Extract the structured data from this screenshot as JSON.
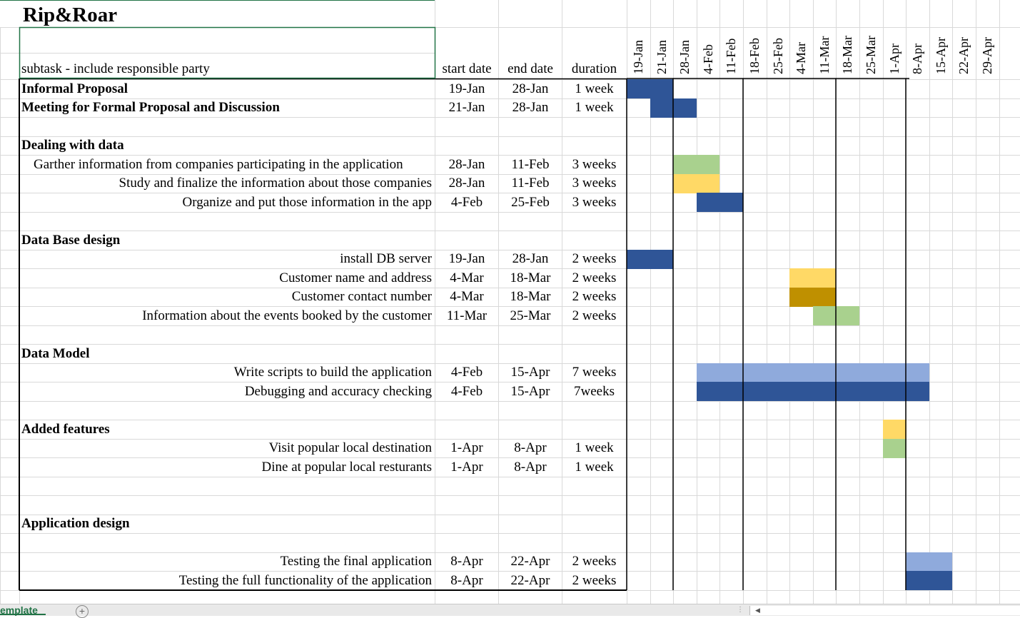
{
  "title": "Rip&Roar",
  "headers": {
    "task": "subtask - include responsible party",
    "start": "start date",
    "end": "end date",
    "duration": "duration"
  },
  "weeks": [
    "19-Jan",
    "21-Jan",
    "28-Jan",
    "4-Feb",
    "11-Feb",
    "18-Feb",
    "25-Feb",
    "4-Mar",
    "11-Mar",
    "18-Mar",
    "25-Mar",
    "1-Apr",
    "8-Apr",
    "15-Apr",
    "22-Apr",
    "29-Apr"
  ],
  "rows": [
    {
      "task": "Informal Proposal",
      "style": "bold",
      "start": "19-Jan",
      "end": "28-Jan",
      "duration": "1 week"
    },
    {
      "task": "Meeting for Formal Proposal and Discussion",
      "style": "bold",
      "start": "21-Jan",
      "end": "28-Jan",
      "duration": "1 week"
    },
    {
      "task": "",
      "style": "blank",
      "start": "",
      "end": "",
      "duration": ""
    },
    {
      "task": "Dealing with data",
      "style": "bold",
      "start": "",
      "end": "",
      "duration": ""
    },
    {
      "task": "Garther information from companies participating in the application",
      "style": "indent",
      "start": "28-Jan",
      "end": "11-Feb",
      "duration": "3 weeks"
    },
    {
      "task": "Study and finalize  the information about those companies",
      "style": "right",
      "start": "28-Jan",
      "end": "11-Feb",
      "duration": "3 weeks"
    },
    {
      "task": "Organize and put those information in the app",
      "style": "right",
      "start": "4-Feb",
      "end": "25-Feb",
      "duration": "3 weeks"
    },
    {
      "task": "",
      "style": "blank",
      "start": "",
      "end": "",
      "duration": ""
    },
    {
      "task": "Data Base design",
      "style": "bold",
      "start": "",
      "end": "",
      "duration": ""
    },
    {
      "task": "install DB server",
      "style": "right",
      "start": "19-Jan",
      "end": "28-Jan",
      "duration": "2 weeks"
    },
    {
      "task": "Customer name and address",
      "style": "right",
      "start": "4-Mar",
      "end": "18-Mar",
      "duration": "2 weeks"
    },
    {
      "task": "Customer contact number",
      "style": "right",
      "start": "4-Mar",
      "end": "18-Mar",
      "duration": "2 weeks"
    },
    {
      "task": "Information about the events booked by the customer",
      "style": "right",
      "start": "11-Mar",
      "end": "25-Mar",
      "duration": "2 weeks"
    },
    {
      "task": "",
      "style": "blank",
      "start": "",
      "end": "",
      "duration": ""
    },
    {
      "task": "Data Model",
      "style": "bold",
      "start": "",
      "end": "",
      "duration": ""
    },
    {
      "task": "Write scripts to build the application",
      "style": "right",
      "start": "4-Feb",
      "end": "15-Apr",
      "duration": "7 weeks"
    },
    {
      "task": "Debugging and accuracy checking",
      "style": "right",
      "start": "4-Feb",
      "end": "15-Apr",
      "duration": "7weeks"
    },
    {
      "task": "",
      "style": "blank",
      "start": "",
      "end": "",
      "duration": ""
    },
    {
      "task": "Added features",
      "style": "bold",
      "start": "",
      "end": "",
      "duration": ""
    },
    {
      "task": "Visit popular local destination",
      "style": "right",
      "start": "1-Apr",
      "end": "8-Apr",
      "duration": "1 week"
    },
    {
      "task": "Dine at popular local resturants",
      "style": "right",
      "start": "1-Apr",
      "end": "8-Apr",
      "duration": "1 week"
    },
    {
      "task": "",
      "style": "blank",
      "start": "",
      "end": "",
      "duration": ""
    },
    {
      "task": "",
      "style": "blank",
      "start": "",
      "end": "",
      "duration": ""
    },
    {
      "task": "Application design",
      "style": "bold",
      "start": "",
      "end": "",
      "duration": ""
    },
    {
      "task": "",
      "style": "blank",
      "start": "",
      "end": "",
      "duration": ""
    },
    {
      "task": "Testing the final application",
      "style": "right",
      "start": "8-Apr",
      "end": "22-Apr",
      "duration": "2 weeks"
    },
    {
      "task": "Testing the full functionality of the application",
      "style": "right",
      "start": "8-Apr",
      "end": "22-Apr",
      "duration": "2 weeks"
    }
  ],
  "gantt_bars": [
    {
      "row": 0,
      "start_week": "19-Jan",
      "end_week": "21-Jan",
      "color": "#2f5597"
    },
    {
      "row": 1,
      "start_week": "21-Jan",
      "end_week": "28-Jan",
      "color": "#2f5597"
    },
    {
      "row": 4,
      "start_week": "28-Jan",
      "end_week": "4-Feb",
      "color": "#a9d18e"
    },
    {
      "row": 5,
      "start_week": "28-Jan",
      "end_week": "4-Feb",
      "color": "#ffd966"
    },
    {
      "row": 6,
      "start_week": "4-Feb",
      "end_week": "11-Feb",
      "color": "#2f5597"
    },
    {
      "row": 9,
      "start_week": "19-Jan",
      "end_week": "21-Jan",
      "color": "#2f5597"
    },
    {
      "row": 10,
      "start_week": "4-Mar",
      "end_week": "11-Mar",
      "color": "#ffd966"
    },
    {
      "row": 11,
      "start_week": "4-Mar",
      "end_week": "11-Mar",
      "color": "#bf9000"
    },
    {
      "row": 12,
      "start_week": "11-Mar",
      "end_week": "18-Mar",
      "color": "#a9d18e"
    },
    {
      "row": 15,
      "start_week": "4-Feb",
      "end_week": "8-Apr",
      "color": "#8faadc"
    },
    {
      "row": 16,
      "start_week": "4-Feb",
      "end_week": "8-Apr",
      "color": "#2f5597"
    },
    {
      "row": 18,
      "start_week": "1-Apr",
      "end_week": "1-Apr",
      "color": "#ffd966"
    },
    {
      "row": 19,
      "start_week": "1-Apr",
      "end_week": "1-Apr",
      "color": "#a9d18e"
    },
    {
      "row": 25,
      "start_week": "8-Apr",
      "end_week": "15-Apr",
      "color": "#8faadc"
    },
    {
      "row": 26,
      "start_week": "8-Apr",
      "end_week": "15-Apr",
      "color": "#2f5597"
    }
  ],
  "sheet_tab": "emplate",
  "add_sheet": "+",
  "colors": {
    "grid": "#d9d9d9",
    "border": "#000000",
    "tab_accent": "#217346"
  }
}
